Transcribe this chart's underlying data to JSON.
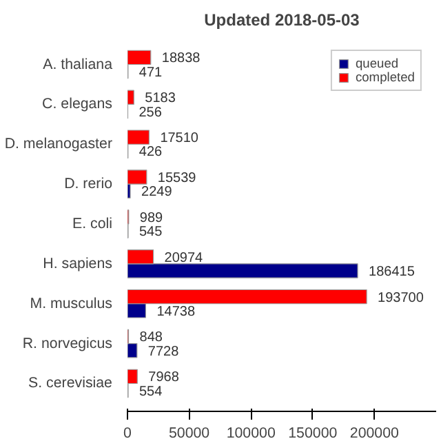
{
  "chart_data": {
    "type": "bar",
    "orientation": "horizontal",
    "title": "Updated 2018-05-03",
    "categories": [
      "A. thaliana",
      "C. elegans",
      "D. melanogaster",
      "D. rerio",
      "E. coli",
      "H. sapiens",
      "M. musculus",
      "R. norvegicus",
      "S. cerevisiae"
    ],
    "series": [
      {
        "name": "queued",
        "color": "#00008b",
        "values": [
          471,
          256,
          426,
          2249,
          545,
          186415,
          14738,
          7728,
          554
        ]
      },
      {
        "name": "completed",
        "color": "#ff0000",
        "values": [
          18838,
          5183,
          17510,
          15539,
          989,
          20974,
          193700,
          848,
          7968
        ]
      }
    ],
    "xlim": [
      0,
      250000
    ],
    "xticks": [
      0,
      50000,
      100000,
      150000,
      200000
    ],
    "data_labels": true,
    "legend": "top right",
    "grid": false
  }
}
